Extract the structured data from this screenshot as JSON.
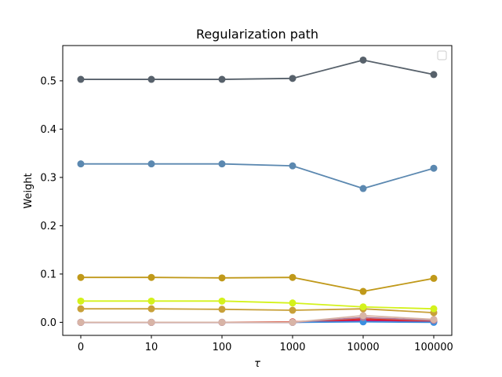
{
  "chart_data": {
    "type": "line",
    "title": "Regularization path",
    "xlabel": "τ",
    "ylabel": "Weight",
    "categories": [
      "0",
      "10",
      "100",
      "1000",
      "10000",
      "100000"
    ],
    "yticks": [
      "0.0",
      "0.1",
      "0.2",
      "0.3",
      "0.4",
      "0.5"
    ],
    "ytick_values": [
      0.0,
      0.1,
      0.2,
      0.3,
      0.4,
      0.5
    ],
    "ylim": [
      -0.027,
      0.573
    ],
    "grid": false,
    "legend": {
      "placement": "top-right",
      "entries": []
    },
    "series": [
      {
        "color": "#57616b",
        "values": [
          0.503,
          0.503,
          0.503,
          0.505,
          0.543,
          0.513
        ]
      },
      {
        "color": "#5b88b0",
        "values": [
          0.328,
          0.328,
          0.328,
          0.324,
          0.277,
          0.319
        ]
      },
      {
        "color": "#c0991a",
        "values": [
          0.093,
          0.093,
          0.092,
          0.093,
          0.064,
          0.091
        ]
      },
      {
        "color": "#d4f21c",
        "values": [
          0.044,
          0.044,
          0.044,
          0.04,
          0.032,
          0.028
        ]
      },
      {
        "color": "#c8a039",
        "values": [
          0.028,
          0.028,
          0.027,
          0.025,
          0.028,
          0.02
        ]
      },
      {
        "color": "#d8b4a6",
        "values": [
          0.0,
          0.0,
          0.0,
          0.0,
          0.014,
          0.006
        ]
      },
      {
        "color": "#b07a9a",
        "values": [
          0.0,
          0.0,
          0.0,
          0.0,
          0.01,
          0.004
        ]
      },
      {
        "color": "#3b8fe0",
        "values": [
          0.0,
          0.0,
          0.0,
          0.0,
          0.001,
          0.0
        ]
      },
      {
        "color": "#e0301e",
        "values": [
          0.0,
          0.0,
          0.0,
          0.001,
          0.007,
          0.003
        ]
      },
      {
        "color": "#c2106a",
        "values": [
          0.0,
          0.0,
          0.0,
          0.0,
          0.004,
          0.002
        ]
      }
    ]
  }
}
